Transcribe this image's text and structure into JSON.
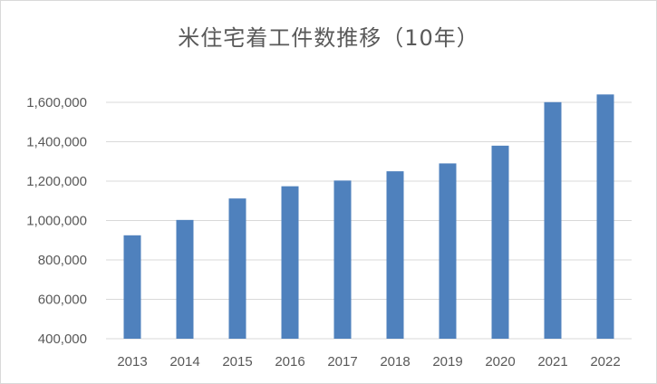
{
  "chart_data": {
    "type": "bar",
    "title": "米住宅着工件数推移（10年）",
    "categories": [
      "2013",
      "2014",
      "2015",
      "2016",
      "2017",
      "2018",
      "2019",
      "2020",
      "2021",
      "2022"
    ],
    "values": [
      925000,
      1003000,
      1112000,
      1174000,
      1203000,
      1250000,
      1290000,
      1380000,
      1601000,
      1640000
    ],
    "ylim": [
      400000,
      1700000
    ],
    "yticks": [
      400000,
      600000,
      800000,
      1000000,
      1200000,
      1400000,
      1600000
    ],
    "ytick_labels": [
      "400,000",
      "600,000",
      "800,000",
      "1,000,000",
      "1,200,000",
      "1,400,000",
      "1,600,000"
    ],
    "grid": true,
    "legend": "none",
    "bar_color": "#4f81bd"
  }
}
